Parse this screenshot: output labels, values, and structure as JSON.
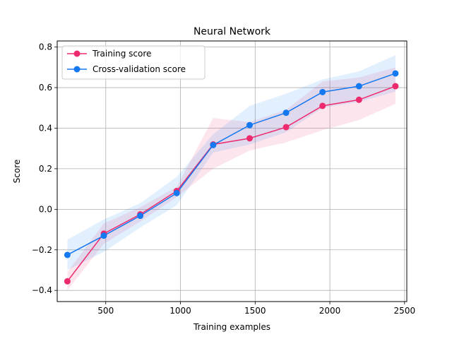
{
  "chart_data": {
    "type": "line",
    "title": "Neural Network",
    "xlabel": "Training examples",
    "ylabel": "Score",
    "xlim": [
      175,
      2515
    ],
    "ylim": [
      -0.455,
      0.83
    ],
    "xticks": [
      500,
      1000,
      1500,
      2000,
      2500
    ],
    "yticks": [
      -0.4,
      -0.2,
      0.0,
      0.2,
      0.4,
      0.6,
      0.8
    ],
    "xtick_labels": [
      "500",
      "1000",
      "1500",
      "2000",
      "2500"
    ],
    "ytick_labels": [
      "−0.4",
      "−0.2",
      "0.0",
      "0.2",
      "0.4",
      "0.6",
      "0.8"
    ],
    "grid": true,
    "legend_position": "top-left",
    "x": [
      243,
      487,
      731,
      975,
      1219,
      1463,
      1707,
      1951,
      2195,
      2439
    ],
    "series": [
      {
        "name": "Training score",
        "color": "#ee2a6e",
        "values": [
          -0.355,
          -0.12,
          -0.025,
          0.09,
          0.32,
          0.35,
          0.405,
          0.51,
          0.54,
          0.607
        ],
        "band_lower": [
          -0.4,
          -0.17,
          -0.06,
          0.06,
          0.2,
          0.29,
          0.33,
          0.39,
          0.44,
          0.52
        ],
        "band_upper": [
          -0.31,
          -0.07,
          0.01,
          0.11,
          0.45,
          0.43,
          0.49,
          0.63,
          0.65,
          0.7
        ]
      },
      {
        "name": "Cross-validation score",
        "color": "#1478f0",
        "values": [
          -0.225,
          -0.13,
          -0.032,
          0.08,
          0.317,
          0.415,
          0.476,
          0.578,
          0.607,
          0.67
        ],
        "band_lower": [
          -0.3,
          -0.21,
          -0.09,
          0.02,
          0.28,
          0.32,
          0.38,
          0.5,
          0.53,
          0.58
        ],
        "band_upper": [
          -0.15,
          -0.05,
          0.03,
          0.16,
          0.37,
          0.51,
          0.57,
          0.64,
          0.68,
          0.76
        ]
      }
    ]
  }
}
